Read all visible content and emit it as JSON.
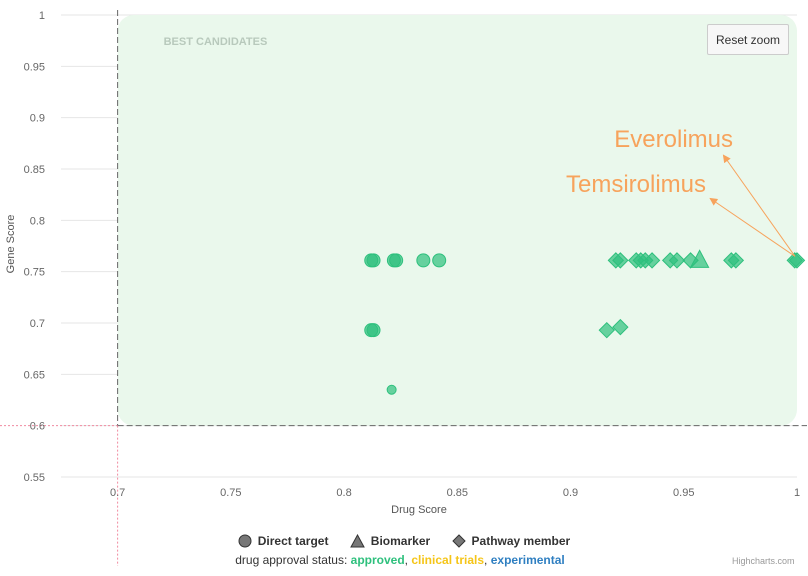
{
  "chart_data": {
    "type": "scatter",
    "xlabel": "Drug Score",
    "ylabel": "Gene Score",
    "xlim": [
      0.675,
      1.0
    ],
    "ylim": [
      0.55,
      1.0
    ],
    "x_ticks": [
      "0.7",
      "0.75",
      "0.8",
      "0.85",
      "0.9",
      "0.95",
      "1"
    ],
    "y_ticks": [
      "0.55",
      "0.6",
      "0.65",
      "0.7",
      "0.75",
      "0.8",
      "0.85",
      "0.9",
      "0.95",
      "1"
    ],
    "threshold_x": 0.7,
    "threshold_y": 0.6,
    "region_label": "BEST CANDIDATES",
    "grid": "horizontal",
    "legend_placement": "bottom-center",
    "series": [
      {
        "name": "Direct target",
        "symbol": "circle",
        "points": [
          {
            "x": 0.812,
            "y": 0.761
          },
          {
            "x": 0.813,
            "y": 0.761
          },
          {
            "x": 0.822,
            "y": 0.761
          },
          {
            "x": 0.823,
            "y": 0.761
          },
          {
            "x": 0.835,
            "y": 0.761
          },
          {
            "x": 0.842,
            "y": 0.761
          },
          {
            "x": 0.812,
            "y": 0.693
          },
          {
            "x": 0.813,
            "y": 0.693
          },
          {
            "x": 0.821,
            "y": 0.635,
            "small": true
          }
        ]
      },
      {
        "name": "Biomarker",
        "symbol": "triangle",
        "points": [
          {
            "x": 0.957,
            "y": 0.761
          }
        ]
      },
      {
        "name": "Pathway member",
        "symbol": "diamond",
        "points": [
          {
            "x": 0.92,
            "y": 0.761
          },
          {
            "x": 0.922,
            "y": 0.761
          },
          {
            "x": 0.929,
            "y": 0.761
          },
          {
            "x": 0.931,
            "y": 0.761
          },
          {
            "x": 0.933,
            "y": 0.761
          },
          {
            "x": 0.936,
            "y": 0.761
          },
          {
            "x": 0.944,
            "y": 0.761
          },
          {
            "x": 0.947,
            "y": 0.761
          },
          {
            "x": 0.953,
            "y": 0.761
          },
          {
            "x": 0.971,
            "y": 0.761
          },
          {
            "x": 0.973,
            "y": 0.761
          },
          {
            "x": 0.999,
            "y": 0.761
          },
          {
            "x": 1.0,
            "y": 0.761
          },
          {
            "x": 0.916,
            "y": 0.693
          },
          {
            "x": 0.922,
            "y": 0.696
          }
        ]
      }
    ],
    "annotations": [
      {
        "text": "Everolimus",
        "x": 1.0,
        "y": 0.761
      },
      {
        "text": "Temsirolimus",
        "x": 1.0,
        "y": 0.761
      }
    ],
    "point_color": "#2ec07d"
  },
  "ui": {
    "reset_zoom_label": "Reset zoom",
    "legend": {
      "direct_target": "Direct target",
      "biomarker": "Biomarker",
      "pathway_member": "Pathway member"
    },
    "status": {
      "prefix": "drug approval status:",
      "approved": "approved",
      "clinical": "clinical trials",
      "experimental": "experimental",
      "sep1": ",",
      "sep2": ","
    },
    "credits": "Highcharts.com"
  },
  "colors": {
    "region_fill": "#eaf8ec",
    "annotation": "#f7a35c",
    "approved": "#2ec07d",
    "clinical": "#f5c518",
    "experimental": "#2f7fc1"
  }
}
